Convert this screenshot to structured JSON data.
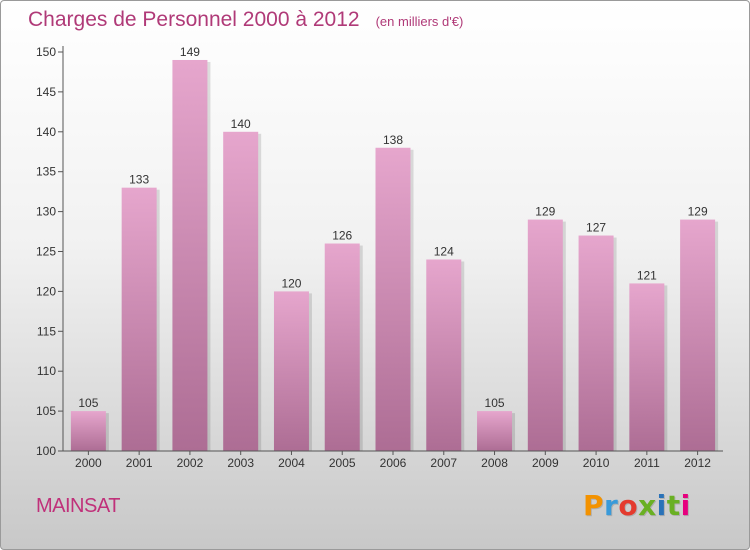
{
  "title": "Charges de Personnel 2000 à 2012",
  "subtitle": "(en milliers d'€)",
  "commune": "MAINSAT",
  "logo": {
    "letters": [
      "P",
      "r",
      "o",
      "x",
      "i",
      "t",
      "i"
    ],
    "colors": [
      "#f39200",
      "#3a9ad9",
      "#e43a2d",
      "#6ab023",
      "#2a72b8",
      "#6ab023",
      "#e6007e"
    ]
  },
  "colors": {
    "bar_top": "#e6a6cd",
    "bar_bottom": "#ad6d94",
    "title": "#b03a78",
    "axis": "#555555"
  },
  "chart_data": {
    "type": "bar",
    "categories": [
      "2000",
      "2001",
      "2002",
      "2003",
      "2004",
      "2005",
      "2006",
      "2007",
      "2008",
      "2009",
      "2010",
      "2011",
      "2012"
    ],
    "values": [
      105,
      133,
      149,
      140,
      120,
      126,
      138,
      124,
      105,
      129,
      127,
      121,
      129
    ],
    "ylim": [
      100,
      150
    ],
    "yticks": [
      100,
      105,
      110,
      115,
      120,
      125,
      130,
      135,
      140,
      145,
      150
    ],
    "grid": false,
    "data_labels": true
  }
}
